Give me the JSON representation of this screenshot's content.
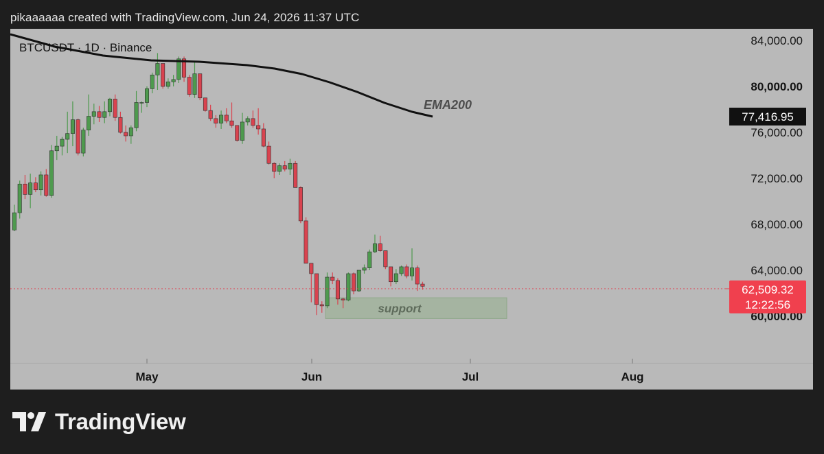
{
  "header": {
    "text": "pikaaaaaa created with TradingView.com, Jun 24, 2026 11:37 UTC"
  },
  "chart": {
    "symbol_label": "BTCUSDT · 1D · Binance"
  },
  "brand": {
    "name": "TradingView"
  },
  "colors": {
    "up": "#4e9a4e",
    "down": "#d9434f",
    "panel": "#b9b9b9",
    "background": "#1e1e1e"
  },
  "chart_data": {
    "type": "candlestick",
    "symbol": "BTCUSDT",
    "timeframe": "1D",
    "exchange": "Binance",
    "x_ticks": [
      "May",
      "Jun",
      "Jul",
      "Aug"
    ],
    "y_ticks": [
      "84,000.00",
      "80,000.00",
      "76,000.00",
      "72,000.00",
      "68,000.00",
      "64,000.00",
      "60,000.00"
    ],
    "y_tick_values": [
      84000,
      80000,
      76000,
      72000,
      68000,
      64000,
      60000
    ],
    "ylim": [
      56000,
      85500
    ],
    "first_candle_date": "2026-04-08",
    "candles": [
      [
        67500,
        69700,
        67400,
        69000
      ],
      [
        69000,
        71800,
        68500,
        71500
      ],
      [
        71500,
        72300,
        70200,
        70600
      ],
      [
        70600,
        72400,
        69400,
        71600
      ],
      [
        71600,
        72100,
        70800,
        71000
      ],
      [
        71000,
        72600,
        70500,
        72300
      ],
      [
        72300,
        72800,
        70400,
        70500
      ],
      [
        70500,
        74900,
        70300,
        74400
      ],
      [
        74400,
        75700,
        73600,
        74800
      ],
      [
        74800,
        75600,
        74000,
        75400
      ],
      [
        75400,
        77800,
        74200,
        75900
      ],
      [
        75900,
        78700,
        74800,
        77100
      ],
      [
        77100,
        77200,
        74000,
        74200
      ],
      [
        74200,
        76400,
        73900,
        76200
      ],
      [
        76200,
        79300,
        75700,
        77400
      ],
      [
        77400,
        78500,
        76700,
        77800
      ],
      [
        77800,
        78300,
        76900,
        77300
      ],
      [
        77300,
        78700,
        76800,
        77800
      ],
      [
        77800,
        79000,
        77400,
        78900
      ],
      [
        78900,
        79300,
        77000,
        77300
      ],
      [
        77300,
        77800,
        75900,
        76000
      ],
      [
        76000,
        76600,
        75200,
        75700
      ],
      [
        75700,
        76600,
        75000,
        76400
      ],
      [
        76400,
        79600,
        76100,
        78600
      ],
      [
        78600,
        78700,
        77700,
        78600
      ],
      [
        78600,
        80000,
        78200,
        79800
      ],
      [
        79800,
        81200,
        79400,
        81000
      ],
      [
        81000,
        82900,
        79700,
        82000
      ],
      [
        82000,
        82000,
        79800,
        80000
      ],
      [
        80000,
        80700,
        79800,
        80400
      ],
      [
        80400,
        81000,
        80000,
        80600
      ],
      [
        80600,
        82600,
        80300,
        82400
      ],
      [
        82400,
        82600,
        80400,
        80800
      ],
      [
        80800,
        81000,
        79100,
        79300
      ],
      [
        79300,
        82200,
        79000,
        81100
      ],
      [
        81100,
        81100,
        78800,
        79000
      ],
      [
        79000,
        79000,
        77800,
        77900
      ],
      [
        77900,
        78400,
        77000,
        77200
      ],
      [
        77200,
        77500,
        76400,
        76800
      ],
      [
        76800,
        77900,
        76300,
        77500
      ],
      [
        77500,
        78100,
        76800,
        77000
      ],
      [
        77000,
        78600,
        76400,
        76600
      ],
      [
        76600,
        76600,
        75200,
        75300
      ],
      [
        75300,
        77700,
        75000,
        76900
      ],
      [
        76900,
        77400,
        76600,
        77200
      ],
      [
        77200,
        77900,
        76400,
        76600
      ],
      [
        76600,
        78100,
        75800,
        76300
      ],
      [
        76300,
        76800,
        74700,
        74800
      ],
      [
        74800,
        75200,
        73200,
        73300
      ],
      [
        73300,
        73400,
        72000,
        72600
      ],
      [
        72600,
        73300,
        72300,
        73100
      ],
      [
        73100,
        73500,
        72600,
        72800
      ],
      [
        72800,
        73700,
        72300,
        73300
      ],
      [
        73300,
        73500,
        71200,
        71200
      ],
      [
        71200,
        71300,
        68100,
        68300
      ],
      [
        68300,
        68600,
        64600,
        64600
      ],
      [
        64600,
        64600,
        61200,
        63700
      ],
      [
        63700,
        63700,
        60100,
        61000
      ],
      [
        61000,
        61300,
        60300,
        60900
      ],
      [
        60900,
        63800,
        60700,
        63400
      ],
      [
        63400,
        63800,
        62800,
        63100
      ],
      [
        63100,
        63300,
        61000,
        61500
      ],
      [
        61500,
        61600,
        60700,
        61400
      ],
      [
        61400,
        63800,
        61300,
        63700
      ],
      [
        63700,
        63800,
        61900,
        62200
      ],
      [
        62200,
        64000,
        62100,
        64000
      ],
      [
        64000,
        64500,
        63700,
        64200
      ],
      [
        64200,
        65800,
        64000,
        65600
      ],
      [
        65600,
        67100,
        65500,
        66300
      ],
      [
        66300,
        67000,
        65600,
        65700
      ],
      [
        65700,
        65700,
        64100,
        64300
      ],
      [
        64300,
        64300,
        62600,
        63000
      ],
      [
        63000,
        64100,
        62800,
        63700
      ],
      [
        63700,
        64400,
        63500,
        64300
      ],
      [
        64300,
        64500,
        63300,
        63500
      ],
      [
        63500,
        65900,
        63100,
        64200
      ],
      [
        64200,
        64400,
        62200,
        62800
      ],
      [
        62800,
        63000,
        62300,
        62600
      ]
    ],
    "ema200": {
      "label": "EMA200",
      "last_value": "77,416.95"
    },
    "last_price": {
      "price": "62,509.32",
      "countdown": "12:22:56"
    },
    "support_zone": {
      "label": "support",
      "top": 61600,
      "bottom": 59800
    }
  }
}
